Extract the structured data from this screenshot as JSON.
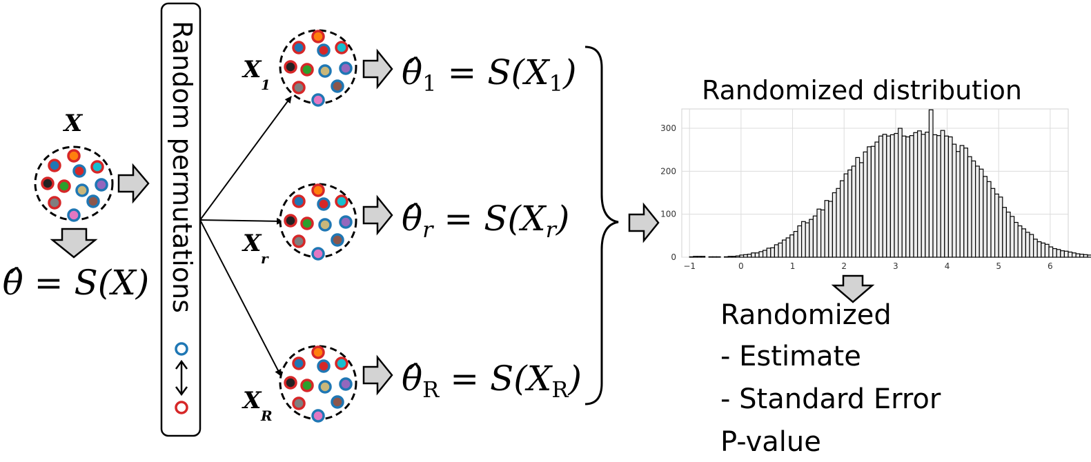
{
  "original": {
    "label": "X",
    "estimate": "θ̂ = S(X)"
  },
  "permutation_box": {
    "label": "Random permutations"
  },
  "samples": [
    {
      "label": "X",
      "sub": "1",
      "estimate": "θ̂",
      "est_sub": "1",
      "rhs": "= S(X",
      "rhs_sub": "1",
      "rhs_end": ")"
    },
    {
      "label": "X",
      "sub": "r",
      "estimate": "θ̂",
      "est_sub": "r",
      "rhs": "= S(X",
      "rhs_sub": "r",
      "rhs_end": ")"
    },
    {
      "label": "X",
      "sub": "R",
      "estimate": "θ̂",
      "est_sub": "R",
      "rhs": "= S(X",
      "rhs_sub": "R",
      "rhs_end": ")"
    }
  ],
  "distribution": {
    "title": "Randomized distribution"
  },
  "outputs": {
    "heading": "Randomized",
    "items": [
      "- Estimate",
      "- Standard Error"
    ],
    "pvalue": "P-value"
  },
  "colors": {
    "blue": "#1f77b4",
    "red": "#d62728",
    "orange": "#ff7f0e",
    "olive": "#bcbd22",
    "green": "#2ca02c",
    "purple": "#9467bd",
    "teal": "#17becf",
    "pink": "#e377c2",
    "brown": "#8c564b",
    "gray": "#7f7f7f",
    "tan": "#c9b77a",
    "dark": "#222222",
    "arrow_fill": "#d3d3d3"
  },
  "chart_data": {
    "type": "bar",
    "title": "Randomized distribution",
    "xlabel": "",
    "ylabel": "",
    "xlim": [
      -1.15,
      6.35
    ],
    "ylim": [
      0,
      345
    ],
    "xticks": [
      -1,
      0,
      1,
      2,
      3,
      4,
      5,
      6
    ],
    "yticks": [
      0,
      100,
      200,
      300
    ],
    "grid": true,
    "bin_start": -1.0,
    "bin_width": 0.075,
    "values": [
      1,
      2,
      2,
      2,
      0,
      1,
      1,
      1,
      0,
      1,
      2,
      2,
      3,
      5,
      6,
      7,
      10,
      10,
      13,
      16,
      21,
      22,
      29,
      33,
      40,
      45,
      52,
      60,
      73,
      83,
      80,
      88,
      96,
      112,
      110,
      132,
      130,
      150,
      160,
      178,
      194,
      203,
      212,
      232,
      220,
      245,
      257,
      258,
      268,
      282,
      286,
      282,
      285,
      288,
      300,
      282,
      280,
      283,
      290,
      294,
      286,
      291,
      343,
      285,
      283,
      295,
      282,
      280,
      263,
      246,
      260,
      254,
      234,
      224,
      212,
      205,
      188,
      176,
      160,
      147,
      140,
      116,
      105,
      95,
      81,
      73,
      66,
      58,
      53,
      42,
      36,
      33,
      30,
      24,
      20,
      18,
      15,
      14,
      12,
      10,
      8,
      7,
      6,
      5,
      4,
      4,
      3,
      2,
      2,
      3,
      2,
      2,
      2,
      2,
      1,
      1,
      0,
      1,
      1,
      1
    ]
  }
}
